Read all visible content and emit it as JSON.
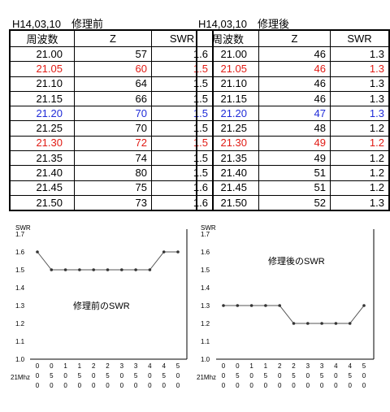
{
  "tables": [
    {
      "title": "H14,03,10　修理前",
      "headers": [
        "周波数",
        "Z",
        "SWR"
      ],
      "rows": [
        {
          "freq": "21.00",
          "z": "57",
          "swr": "1.6",
          "color": "#000000"
        },
        {
          "freq": "21.05",
          "z": "60",
          "swr": "1.5",
          "color": "#e11b14"
        },
        {
          "freq": "21.10",
          "z": "64",
          "swr": "1.5",
          "color": "#000000"
        },
        {
          "freq": "21.15",
          "z": "66",
          "swr": "1.5",
          "color": "#000000"
        },
        {
          "freq": "21.20",
          "z": "70",
          "swr": "1.5",
          "color": "#1f2bd8"
        },
        {
          "freq": "21.25",
          "z": "70",
          "swr": "1.5",
          "color": "#000000"
        },
        {
          "freq": "21.30",
          "z": "72",
          "swr": "1.5",
          "color": "#e11b14"
        },
        {
          "freq": "21.35",
          "z": "74",
          "swr": "1.5",
          "color": "#000000"
        },
        {
          "freq": "21.40",
          "z": "80",
          "swr": "1.5",
          "color": "#000000"
        },
        {
          "freq": "21.45",
          "z": "75",
          "swr": "1.6",
          "color": "#000000"
        },
        {
          "freq": "21.50",
          "z": "73",
          "swr": "1.6",
          "color": "#000000"
        }
      ]
    },
    {
      "title": "H14,03,10　修理後",
      "headers": [
        "周波数",
        "Z",
        "SWR"
      ],
      "rows": [
        {
          "freq": "21.00",
          "z": "46",
          "swr": "1.3",
          "color": "#000000"
        },
        {
          "freq": "21.05",
          "z": "46",
          "swr": "1.3",
          "color": "#e11b14"
        },
        {
          "freq": "21.10",
          "z": "46",
          "swr": "1.3",
          "color": "#000000"
        },
        {
          "freq": "21.15",
          "z": "46",
          "swr": "1.3",
          "color": "#000000"
        },
        {
          "freq": "21.20",
          "z": "47",
          "swr": "1.3",
          "color": "#1f2bd8"
        },
        {
          "freq": "21.25",
          "z": "48",
          "swr": "1.2",
          "color": "#000000"
        },
        {
          "freq": "21.30",
          "z": "49",
          "swr": "1.2",
          "color": "#e11b14"
        },
        {
          "freq": "21.35",
          "z": "49",
          "swr": "1.2",
          "color": "#000000"
        },
        {
          "freq": "21.40",
          "z": "51",
          "swr": "1.2",
          "color": "#000000"
        },
        {
          "freq": "21.45",
          "z": "51",
          "swr": "1.2",
          "color": "#000000"
        },
        {
          "freq": "21.50",
          "z": "52",
          "swr": "1.3",
          "color": "#000000"
        }
      ]
    }
  ],
  "chart_data": [
    {
      "type": "line",
      "ylabel": "SWR",
      "xlabel": "21Mhz",
      "annotation": "修理前のSWR",
      "ylim": [
        1.0,
        1.7
      ],
      "yticks": [
        "1.7",
        "1.6",
        "1.5",
        "1.4",
        "1.3",
        "1.2",
        "1.1",
        "1.0"
      ],
      "categories": [
        "000",
        "050",
        "100",
        "150",
        "200",
        "250",
        "300",
        "350",
        "400",
        "450",
        "500"
      ],
      "values": [
        1.6,
        1.5,
        1.5,
        1.5,
        1.5,
        1.5,
        1.5,
        1.5,
        1.5,
        1.6,
        1.6
      ],
      "grid": false
    },
    {
      "type": "line",
      "ylabel": "SWR",
      "xlabel": "21Mhz",
      "annotation": "修理後のSWR",
      "ylim": [
        1.0,
        1.7
      ],
      "yticks": [
        "1.7",
        "1.6",
        "1.5",
        "1.4",
        "1.3",
        "1.2",
        "1.1",
        "1.0"
      ],
      "categories": [
        "000",
        "050",
        "100",
        "150",
        "200",
        "250",
        "300",
        "350",
        "400",
        "450",
        "500"
      ],
      "values": [
        1.3,
        1.3,
        1.3,
        1.3,
        1.3,
        1.2,
        1.2,
        1.2,
        1.2,
        1.2,
        1.3
      ],
      "grid": false
    }
  ]
}
